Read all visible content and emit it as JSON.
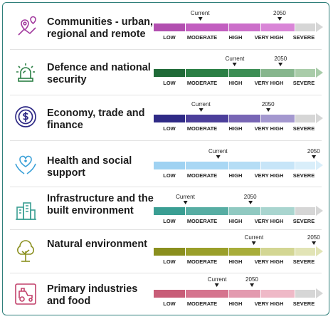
{
  "levels": [
    "LOW",
    "MODERATE",
    "HIGH",
    "VERY HIGH",
    "SEVERE"
  ],
  "colors": {
    "frame": "#2f7f7a",
    "inactive": "#d6d6d6"
  },
  "sectors": [
    {
      "name": "Communities - urban, regional and remote",
      "icon": "location-pins-icon",
      "current_label": "Current",
      "future_label": "2050",
      "current": 0.286,
      "future": 0.776,
      "colors": [
        "#b24fb0",
        "#c25ec0",
        "#cc6fca",
        "#d985d7",
        "#d6d6d6"
      ]
    },
    {
      "name": "Defence and national security",
      "icon": "siren-light-icon",
      "current_label": "Current",
      "future_label": "2050",
      "current": 0.5,
      "future": 0.782,
      "colors": [
        "#1f6a37",
        "#2a7f44",
        "#3c8e54",
        "#86b68d",
        "#a9cca9"
      ]
    },
    {
      "name": "Economy, trade and finance",
      "icon": "dollar-coin-icon",
      "current_label": "Current",
      "future_label": "2050",
      "current": 0.291,
      "future": 0.705,
      "colors": [
        "#2f2a86",
        "#4c3f9b",
        "#7866b5",
        "#a498cf",
        "#d6d6d6"
      ]
    },
    {
      "name": "Health and social support",
      "icon": "heart-hands-icon",
      "current_label": "Current",
      "future_label": "2050",
      "current": 0.396,
      "future": 0.986,
      "colors": [
        "#9fd2f2",
        "#a9d7f4",
        "#b5ddf5",
        "#c7e5f8",
        "#d9eefa"
      ]
    },
    {
      "name": "Infrastructure and the built environment",
      "icon": "city-buildings-icon",
      "current_label": "Current",
      "future_label": "2050",
      "current": 0.195,
      "future": 0.595,
      "colors": [
        "#3a9e93",
        "#57ada3",
        "#90c9c1",
        "#a9d5cf",
        "#d6d6d6"
      ]
    },
    {
      "name": "Natural environment",
      "icon": "tree-icon",
      "current_label": "Current",
      "future_label": "2050",
      "current": 0.618,
      "future": 0.986,
      "colors": [
        "#8a8f1e",
        "#9a9f2a",
        "#a8ad3a",
        "#d3d693",
        "#e2e4b6"
      ]
    },
    {
      "name": "Primary industries and food",
      "icon": "tractor-field-icon",
      "current_label": "Current",
      "future_label": "2050",
      "current": 0.391,
      "future": 0.605,
      "colors": [
        "#c85d78",
        "#d5748e",
        "#e39aaf",
        "#efb9c7",
        "#d6d6d6"
      ]
    }
  ]
}
